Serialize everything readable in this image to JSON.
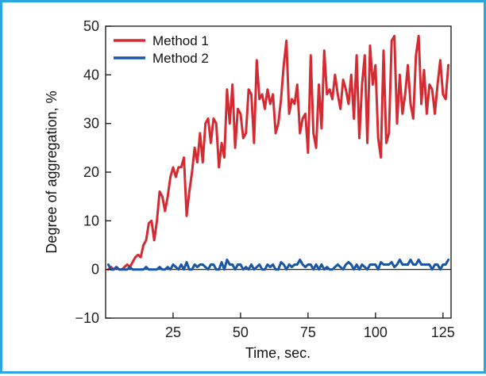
{
  "chart_data": {
    "type": "line",
    "title": "",
    "xlabel": "Time, sec.",
    "ylabel": "Degree of aggregation, %",
    "xlim": [
      0,
      128
    ],
    "ylim": [
      -10,
      50
    ],
    "xticks": [
      25,
      50,
      75,
      100,
      125
    ],
    "yticks": [
      -10,
      0,
      10,
      20,
      30,
      40,
      50
    ],
    "xtick_labels": [
      "25",
      "50",
      "75",
      "100",
      "125"
    ],
    "ytick_labels": [
      "−10",
      "0",
      "10",
      "20",
      "30",
      "40",
      "50"
    ],
    "grid": false,
    "legend_position": "top-left",
    "reference_line_y": 0,
    "series": [
      {
        "name": "Method 1",
        "color": "#d42a32",
        "points": [
          [
            1,
            0
          ],
          [
            2,
            0.5
          ],
          [
            3,
            0
          ],
          [
            4,
            0.5
          ],
          [
            5,
            0
          ],
          [
            6,
            0
          ],
          [
            7,
            0.5
          ],
          [
            8,
            1
          ],
          [
            9,
            0.5
          ],
          [
            10,
            1.5
          ],
          [
            11,
            2.5
          ],
          [
            12,
            3
          ],
          [
            13,
            2.5
          ],
          [
            14,
            5
          ],
          [
            15,
            6
          ],
          [
            16,
            9.5
          ],
          [
            17,
            10
          ],
          [
            18,
            6
          ],
          [
            19,
            10
          ],
          [
            20,
            16
          ],
          [
            21,
            15
          ],
          [
            22,
            12
          ],
          [
            23,
            15
          ],
          [
            24,
            19
          ],
          [
            25,
            21
          ],
          [
            26,
            19
          ],
          [
            27,
            21
          ],
          [
            28,
            21
          ],
          [
            29,
            23
          ],
          [
            30,
            11
          ],
          [
            31,
            16
          ],
          [
            32,
            20
          ],
          [
            33,
            25
          ],
          [
            34,
            22
          ],
          [
            35,
            28
          ],
          [
            36,
            22
          ],
          [
            37,
            30
          ],
          [
            38,
            31
          ],
          [
            39,
            26
          ],
          [
            40,
            31
          ],
          [
            41,
            30
          ],
          [
            42,
            21
          ],
          [
            43,
            26
          ],
          [
            44,
            23
          ],
          [
            45,
            37
          ],
          [
            46,
            30
          ],
          [
            47,
            38
          ],
          [
            48,
            25
          ],
          [
            49,
            33
          ],
          [
            50,
            32
          ],
          [
            51,
            27
          ],
          [
            52,
            28
          ],
          [
            53,
            37
          ],
          [
            54,
            36
          ],
          [
            55,
            26
          ],
          [
            56,
            43
          ],
          [
            57,
            35
          ],
          [
            58,
            36
          ],
          [
            59,
            33
          ],
          [
            60,
            37
          ],
          [
            61,
            34
          ],
          [
            62,
            36
          ],
          [
            63,
            28
          ],
          [
            64,
            30
          ],
          [
            65,
            35
          ],
          [
            66,
            42
          ],
          [
            67,
            47
          ],
          [
            68,
            32
          ],
          [
            69,
            35
          ],
          [
            70,
            34
          ],
          [
            71,
            38
          ],
          [
            72,
            28
          ],
          [
            73,
            31
          ],
          [
            74,
            32
          ],
          [
            75,
            24
          ],
          [
            76,
            44
          ],
          [
            77,
            28
          ],
          [
            78,
            25
          ],
          [
            79,
            38
          ],
          [
            80,
            29
          ],
          [
            81,
            45
          ],
          [
            82,
            36
          ],
          [
            83,
            37
          ],
          [
            84,
            35
          ],
          [
            85,
            40
          ],
          [
            86,
            36
          ],
          [
            87,
            33
          ],
          [
            88,
            39
          ],
          [
            89,
            37
          ],
          [
            90,
            34
          ],
          [
            91,
            40
          ],
          [
            92,
            31
          ],
          [
            93,
            44
          ],
          [
            94,
            27
          ],
          [
            95,
            38
          ],
          [
            96,
            44
          ],
          [
            97,
            26
          ],
          [
            98,
            46
          ],
          [
            99,
            38
          ],
          [
            100,
            42
          ],
          [
            101,
            27
          ],
          [
            102,
            23
          ],
          [
            103,
            45
          ],
          [
            104,
            26
          ],
          [
            105,
            28
          ],
          [
            106,
            47
          ],
          [
            107,
            48
          ],
          [
            108,
            30
          ],
          [
            109,
            40
          ],
          [
            110,
            32
          ],
          [
            111,
            36
          ],
          [
            112,
            42
          ],
          [
            113,
            34
          ],
          [
            114,
            31
          ],
          [
            115,
            44
          ],
          [
            116,
            48
          ],
          [
            117,
            34
          ],
          [
            118,
            41
          ],
          [
            119,
            32
          ],
          [
            120,
            38
          ],
          [
            121,
            37
          ],
          [
            122,
            32
          ],
          [
            123,
            38
          ],
          [
            124,
            43
          ],
          [
            125,
            36
          ],
          [
            126,
            35
          ],
          [
            127,
            42
          ]
        ]
      },
      {
        "name": "Method 2",
        "color": "#1a56a6",
        "points": [
          [
            1,
            1
          ],
          [
            2,
            0
          ],
          [
            3,
            0
          ],
          [
            4,
            0.5
          ],
          [
            5,
            0
          ],
          [
            6,
            0
          ],
          [
            7,
            0
          ],
          [
            8,
            0
          ],
          [
            9,
            0.5
          ],
          [
            10,
            0
          ],
          [
            11,
            0
          ],
          [
            12,
            0
          ],
          [
            13,
            0
          ],
          [
            14,
            0
          ],
          [
            15,
            0.5
          ],
          [
            16,
            0
          ],
          [
            17,
            0
          ],
          [
            18,
            0
          ],
          [
            19,
            0
          ],
          [
            20,
            0.5
          ],
          [
            21,
            0
          ],
          [
            22,
            0
          ],
          [
            23,
            0.5
          ],
          [
            24,
            0
          ],
          [
            25,
            1
          ],
          [
            26,
            0.5
          ],
          [
            27,
            0
          ],
          [
            28,
            1
          ],
          [
            29,
            0
          ],
          [
            30,
            1.5
          ],
          [
            31,
            0
          ],
          [
            32,
            0
          ],
          [
            33,
            1
          ],
          [
            34,
            0.5
          ],
          [
            35,
            1
          ],
          [
            36,
            1
          ],
          [
            37,
            0.5
          ],
          [
            38,
            0
          ],
          [
            39,
            1
          ],
          [
            40,
            1
          ],
          [
            41,
            0
          ],
          [
            42,
            0
          ],
          [
            43,
            1.5
          ],
          [
            44,
            0
          ],
          [
            45,
            2
          ],
          [
            46,
            1
          ],
          [
            47,
            1
          ],
          [
            48,
            0
          ],
          [
            49,
            1
          ],
          [
            50,
            1
          ],
          [
            51,
            0
          ],
          [
            52,
            0.5
          ],
          [
            53,
            0
          ],
          [
            54,
            1
          ],
          [
            55,
            0
          ],
          [
            56,
            0.5
          ],
          [
            57,
            1
          ],
          [
            58,
            0
          ],
          [
            59,
            0
          ],
          [
            60,
            1
          ],
          [
            61,
            0.5
          ],
          [
            62,
            1
          ],
          [
            63,
            0
          ],
          [
            64,
            0
          ],
          [
            65,
            1.5
          ],
          [
            66,
            1
          ],
          [
            67,
            0
          ],
          [
            68,
            1
          ],
          [
            69,
            0.5
          ],
          [
            70,
            1
          ],
          [
            71,
            1
          ],
          [
            72,
            2
          ],
          [
            73,
            1
          ],
          [
            74,
            0.5
          ],
          [
            75,
            1
          ],
          [
            76,
            1
          ],
          [
            77,
            0
          ],
          [
            78,
            1
          ],
          [
            79,
            0
          ],
          [
            80,
            1
          ],
          [
            81,
            0
          ],
          [
            82,
            0.5
          ],
          [
            83,
            0
          ],
          [
            84,
            0
          ],
          [
            85,
            0.5
          ],
          [
            86,
            1
          ],
          [
            87,
            0.5
          ],
          [
            88,
            0
          ],
          [
            89,
            1
          ],
          [
            90,
            1.5
          ],
          [
            91,
            1
          ],
          [
            92,
            0
          ],
          [
            93,
            1
          ],
          [
            94,
            0
          ],
          [
            95,
            1
          ],
          [
            96,
            0.5
          ],
          [
            97,
            0
          ],
          [
            98,
            1
          ],
          [
            99,
            1
          ],
          [
            100,
            1
          ],
          [
            101,
            0
          ],
          [
            102,
            1.5
          ],
          [
            103,
            1
          ],
          [
            104,
            1
          ],
          [
            105,
            1
          ],
          [
            106,
            1.5
          ],
          [
            107,
            0.5
          ],
          [
            108,
            1
          ],
          [
            109,
            2
          ],
          [
            110,
            1
          ],
          [
            111,
            1
          ],
          [
            112,
            1
          ],
          [
            113,
            2
          ],
          [
            114,
            1
          ],
          [
            115,
            1
          ],
          [
            116,
            2
          ],
          [
            117,
            1
          ],
          [
            118,
            1
          ],
          [
            119,
            1
          ],
          [
            120,
            1
          ],
          [
            121,
            0
          ],
          [
            122,
            1
          ],
          [
            123,
            1
          ],
          [
            124,
            0
          ],
          [
            125,
            1
          ],
          [
            126,
            1
          ],
          [
            127,
            2
          ]
        ]
      }
    ]
  }
}
